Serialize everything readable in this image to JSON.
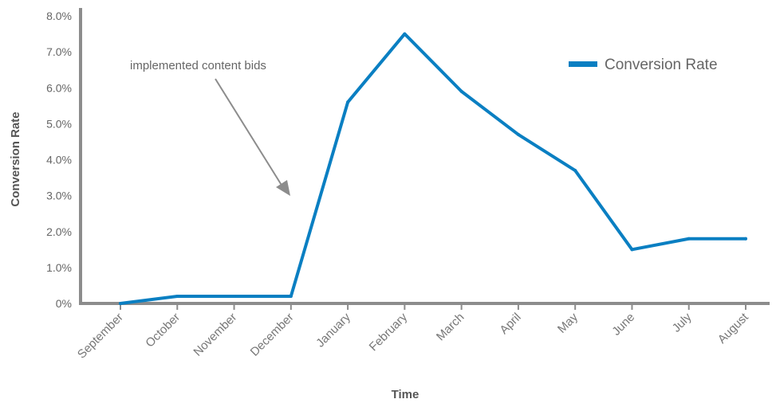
{
  "chart_data": {
    "type": "line",
    "categories": [
      "September",
      "October",
      "November",
      "December",
      "January",
      "February",
      "March",
      "April",
      "May",
      "June",
      "July",
      "August"
    ],
    "series": [
      {
        "name": "Conversion Rate",
        "color": "#0a7fc2",
        "values": [
          0.0,
          0.2,
          0.2,
          0.2,
          5.6,
          7.5,
          5.9,
          4.7,
          3.7,
          1.5,
          1.8,
          1.8
        ]
      }
    ],
    "xlabel": "Time",
    "ylabel": "Conversion Rate",
    "ylim": [
      0,
      8
    ],
    "yticks": [
      "0%",
      "1.0%",
      "2.0%",
      "3.0%",
      "4.0%",
      "5.0%",
      "6.0%",
      "7.0%",
      "8.0%"
    ],
    "legend": {
      "position": "top-right",
      "label": "Conversion Rate"
    },
    "annotation": {
      "text": "implemented content bids",
      "points_to": "December"
    },
    "grid": false,
    "axis_color": "#8c8c8c"
  }
}
